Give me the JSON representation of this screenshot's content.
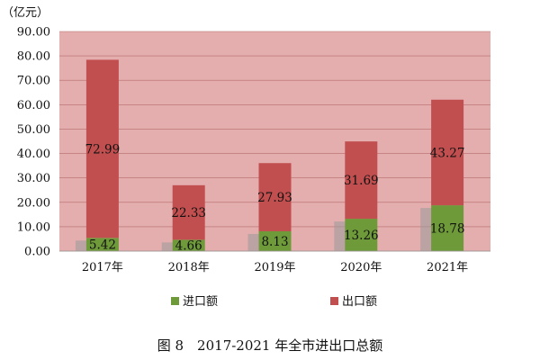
{
  "chart_data": {
    "type": "bar",
    "stacked": true,
    "unit_label": "（亿元）",
    "categories": [
      "2017年",
      "2018年",
      "2019年",
      "2020年",
      "2021年"
    ],
    "series": [
      {
        "name": "进口额",
        "color": "#6e9a3a",
        "values": [
          5.42,
          4.66,
          8.13,
          13.26,
          18.78
        ]
      },
      {
        "name": "出口额",
        "color": "#c14f4f",
        "values": [
          72.99,
          22.33,
          27.93,
          31.69,
          43.27
        ]
      }
    ],
    "ylim": [
      0,
      90
    ],
    "yticks": [
      "0.00",
      "10.00",
      "20.00",
      "30.00",
      "40.00",
      "50.00",
      "60.00",
      "70.00",
      "80.00",
      "90.00"
    ],
    "data_labels": {
      "imports": [
        "5.42",
        "4.66",
        "8.13",
        "13.26",
        "18.78"
      ],
      "exports": [
        "72.99",
        "22.33",
        "27.93",
        "31.69",
        "43.27"
      ]
    },
    "plot_background": "#e4aeae",
    "caption": "图 8　2017-2021 年全市进出口总额"
  }
}
